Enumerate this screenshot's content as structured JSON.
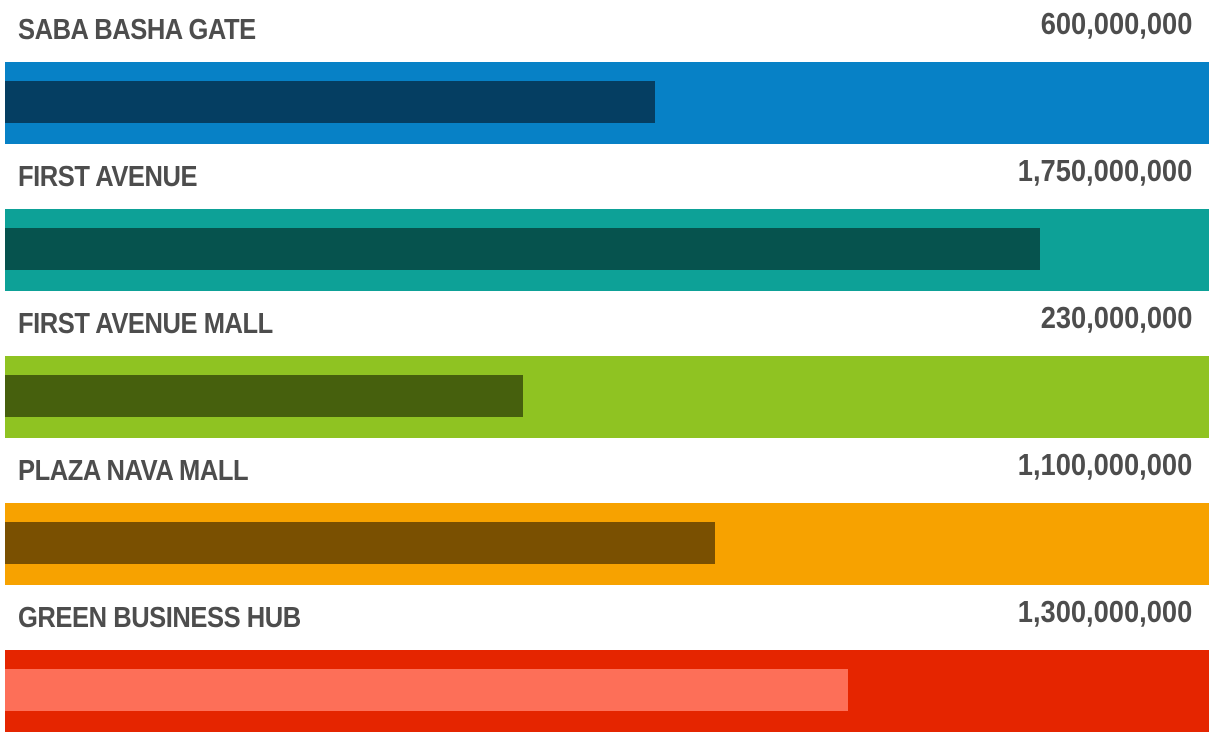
{
  "chart_data": {
    "type": "bar",
    "categories": [
      "SABA BASHA GATE",
      "FIRST AVENUE",
      "FIRST AVENUE MALL",
      "PLAZA NAVA MALL",
      "GREEN BUSINESS HUB"
    ],
    "value_labels": [
      "600,000,000",
      "1,750,000,000",
      "230,000,000",
      "1,100,000,000",
      "1,300,000,000"
    ],
    "values": [
      600000000,
      1750000000,
      230000000,
      1100000000,
      1300000000
    ],
    "fill_fractions": [
      0.54,
      0.86,
      0.43,
      0.59,
      0.7
    ],
    "colors": {
      "track": [
        "#0781c6",
        "#0da197",
        "#8fc322",
        "#f7a200",
        "#e52500"
      ],
      "fill": [
        "#053e62",
        "#06534e",
        "#46600d",
        "#7a5001",
        "#fd6f58"
      ]
    },
    "title": "",
    "xlabel": "",
    "ylabel": ""
  }
}
